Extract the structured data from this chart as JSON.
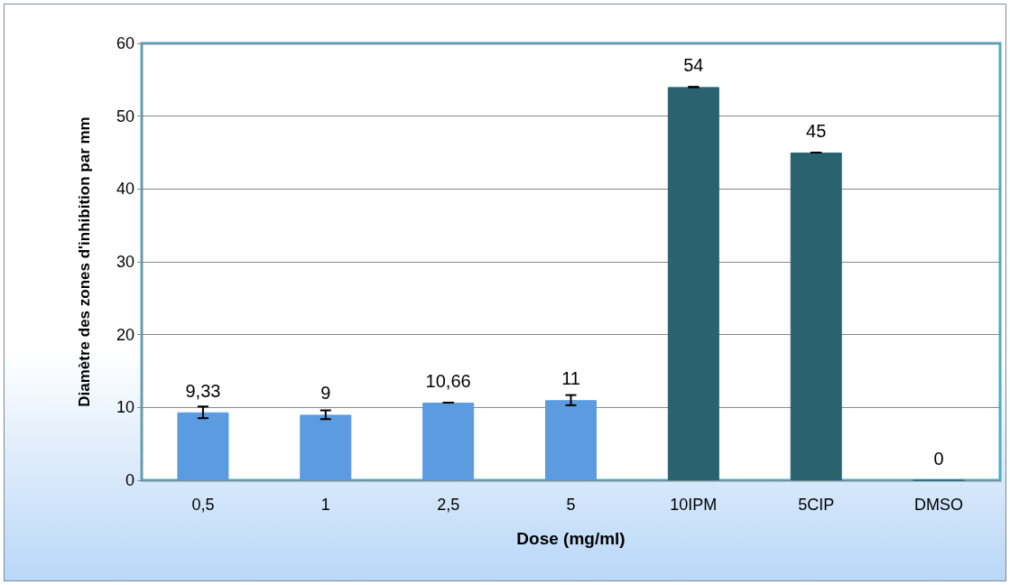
{
  "chart_data": {
    "type": "bar",
    "xlabel": "Dose (mg/ml)",
    "ylabel": "Diamètre des zones d'inhibition par mm",
    "categories": [
      "0,5",
      "1",
      "2,5",
      "5",
      "10IPM",
      "5CIP",
      "DMSO"
    ],
    "values": [
      9.33,
      9,
      10.66,
      11,
      54,
      45,
      0
    ],
    "colors": [
      "#5b9be0",
      "#5b9be0",
      "#5b9be0",
      "#5b9be0",
      "#2a6270",
      "#2a6270",
      "#2a6270"
    ],
    "errors": [
      0.8,
      0.6,
      0,
      0.7,
      0,
      0,
      null
    ],
    "value_labels": [
      "9,33",
      "9",
      "10,66",
      "11",
      "54",
      "45",
      "0"
    ],
    "ylim": [
      0,
      60
    ],
    "yticks": [
      0,
      10,
      20,
      30,
      40,
      50,
      60
    ],
    "grid": "y"
  }
}
